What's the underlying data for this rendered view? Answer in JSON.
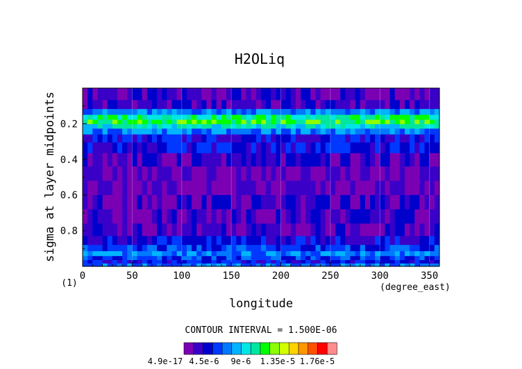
{
  "chart_data": {
    "type": "heatmap",
    "title": "H2OLiq",
    "xlabel": "longitude",
    "ylabel": "sigma at layer midpoints",
    "x_unit": "(degree_east)",
    "y_unit": "(1)",
    "xlim": [
      0,
      360
    ],
    "ylim": [
      1.0,
      0.0
    ],
    "x_ticks": [
      "0",
      "50",
      "100",
      "150",
      "200",
      "250",
      "300",
      "350"
    ],
    "y_ticks": [
      "0.2",
      "0.4",
      "0.6",
      "0.8"
    ],
    "contour_interval_text": "CONTOUR INTERVAL = 1.500E-06",
    "colorbar_labels": [
      "4.9e-17",
      "4.5e-6",
      "9e-6",
      "1.35e-5",
      "1.76e-5"
    ],
    "colorbar_colors": [
      "#7b00b4",
      "#3a00c8",
      "#0000cd",
      "#0038ff",
      "#0078ff",
      "#00b4ff",
      "#00e6e6",
      "#00e6a0",
      "#00ff00",
      "#8cff00",
      "#d2ff00",
      "#ffd200",
      "#ff9600",
      "#ff5000",
      "#ff0000",
      "#ff8c8c"
    ],
    "sigma_levels": [
      0.035,
      0.1,
      0.135,
      0.165,
      0.19,
      0.215,
      0.24,
      0.28,
      0.33,
      0.4,
      0.48,
      0.56,
      0.64,
      0.72,
      0.8,
      0.86,
      0.9,
      0.93,
      0.955,
      0.975,
      0.993
    ],
    "level_profile": [
      1,
      1,
      4,
      7,
      8,
      6,
      4,
      2,
      2,
      1,
      0,
      0,
      1,
      1,
      1,
      2,
      3,
      4,
      3,
      2,
      4
    ]
  }
}
